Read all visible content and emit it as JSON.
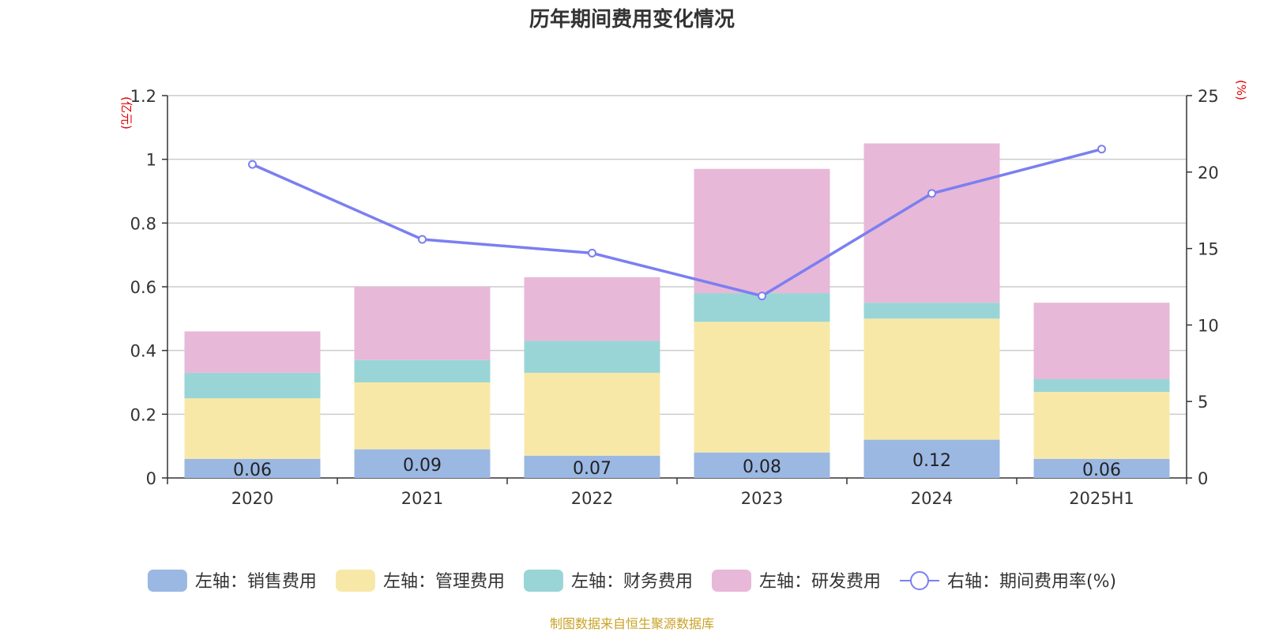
{
  "title": "历年期间费用变化情况",
  "source": "制图数据来自恒生聚源数据库",
  "chart_data": {
    "type": "bar",
    "stacked": true,
    "title": "历年期间费用变化情况",
    "categories": [
      "2020",
      "2021",
      "2022",
      "2023",
      "2024",
      "2025H1"
    ],
    "left_axis": {
      "unit": "(亿元)",
      "ylim": [
        0,
        1.2
      ],
      "ticks": [
        "0",
        "0.2",
        "0.4",
        "0.6",
        "0.8",
        "1",
        "1.2"
      ]
    },
    "right_axis": {
      "unit": "(%)",
      "ylim": [
        0,
        25
      ],
      "ticks": [
        "0",
        "5",
        "10",
        "15",
        "20",
        "25"
      ]
    },
    "series": [
      {
        "name": "左轴：销售费用",
        "axis": "left",
        "kind": "bar",
        "color": "#9bb8e3",
        "values": [
          0.06,
          0.09,
          0.07,
          0.08,
          0.12,
          0.06
        ],
        "labels": [
          "0.06",
          "0.09",
          "0.07",
          "0.08",
          "0.12",
          "0.06"
        ]
      },
      {
        "name": "左轴：管理费用",
        "axis": "left",
        "kind": "bar",
        "color": "#f8e8a8",
        "values": [
          0.19,
          0.21,
          0.26,
          0.41,
          0.38,
          0.21
        ]
      },
      {
        "name": "左轴：财务费用",
        "axis": "left",
        "kind": "bar",
        "color": "#99d5d6",
        "values": [
          0.08,
          0.07,
          0.1,
          0.09,
          0.05,
          0.04
        ]
      },
      {
        "name": "左轴：研发费用",
        "axis": "left",
        "kind": "bar",
        "color": "#e8b8d8",
        "values": [
          0.13,
          0.23,
          0.2,
          0.39,
          0.5,
          0.24
        ]
      },
      {
        "name": "右轴：期间费用率(%)",
        "axis": "right",
        "kind": "line",
        "color": "#7b7ff0",
        "values": [
          20.5,
          15.6,
          14.7,
          11.9,
          18.6,
          21.5
        ]
      }
    ],
    "grid": true,
    "legend_position": "bottom"
  }
}
